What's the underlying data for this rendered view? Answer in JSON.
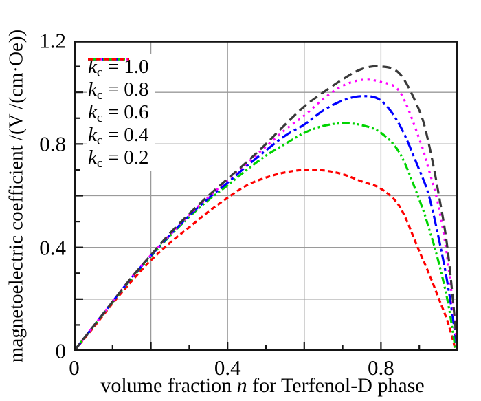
{
  "figure": {
    "background": "#ffffff",
    "axis_color": "#151515",
    "grid_color": "#9a9a9a",
    "text_color": "#000000"
  },
  "chart_data": {
    "type": "line",
    "title": "",
    "xlabel_pre": "volume fraction ",
    "xlabel_italic": "n",
    "xlabel_post": " for Terfenol-D phase",
    "ylabel": "magnetoelectric coefficient /(V /(cm·Oe))",
    "legend_position": "top-left",
    "grid": true,
    "x_axis": {
      "min": 0,
      "max": 1.0,
      "tick_labels": [
        {
          "v": 0,
          "t": "0"
        },
        {
          "v": 0.4,
          "t": "0.4"
        },
        {
          "v": 0.8,
          "t": "0.8"
        }
      ],
      "major_ticks": [
        0.2,
        0.4,
        0.6,
        0.8
      ],
      "minor_ticks": [
        0.1,
        0.3,
        0.5,
        0.7,
        0.9
      ],
      "gridlines": [
        0.2,
        0.4,
        0.6,
        0.8
      ]
    },
    "y_axis": {
      "min": 0,
      "max": 1.2,
      "tick_labels": [
        {
          "v": 0,
          "t": "0"
        },
        {
          "v": 0.4,
          "t": "0.4"
        },
        {
          "v": 0.8,
          "t": "0.8"
        },
        {
          "v": 1.2,
          "t": "1.2"
        }
      ],
      "major_ticks": [
        0.2,
        0.4,
        0.6,
        0.8,
        1.0
      ],
      "minor_ticks": [
        0.1,
        0.3,
        0.5,
        0.7,
        0.9,
        1.1
      ],
      "gridlines": [
        0.2,
        0.4,
        0.6,
        0.8,
        1.0
      ]
    },
    "series": [
      {
        "name": "kc = 0.2",
        "legend_sym": "k",
        "legend_sub": "c",
        "legend_eq": " = 0.2",
        "color": "#ff0000",
        "dash": [
          7,
          4.5
        ],
        "peak": {
          "x": 0.62,
          "y": 0.7
        },
        "points": [
          [
            0,
            0
          ],
          [
            0.05,
            0.09
          ],
          [
            0.1,
            0.183
          ],
          [
            0.15,
            0.27
          ],
          [
            0.2,
            0.35
          ],
          [
            0.25,
            0.418
          ],
          [
            0.3,
            0.478
          ],
          [
            0.35,
            0.538
          ],
          [
            0.4,
            0.592
          ],
          [
            0.45,
            0.64
          ],
          [
            0.5,
            0.67
          ],
          [
            0.55,
            0.69
          ],
          [
            0.6,
            0.7
          ],
          [
            0.65,
            0.698
          ],
          [
            0.7,
            0.683
          ],
          [
            0.75,
            0.655
          ],
          [
            0.8,
            0.627
          ],
          [
            0.85,
            0.555
          ],
          [
            0.9,
            0.385
          ],
          [
            0.925,
            0.3
          ],
          [
            0.95,
            0.205
          ],
          [
            0.975,
            0.108
          ],
          [
            0.995,
            0
          ]
        ]
      },
      {
        "name": "kc = 0.4",
        "legend_sym": "k",
        "legend_sub": "c",
        "legend_eq": " = 0.4",
        "color": "#00d400",
        "dash": [
          11,
          4,
          3,
          4,
          3,
          4
        ],
        "peak": {
          "x": 0.7,
          "y": 0.88
        },
        "points": [
          [
            0,
            0
          ],
          [
            0.05,
            0.094
          ],
          [
            0.1,
            0.188
          ],
          [
            0.15,
            0.28
          ],
          [
            0.2,
            0.365
          ],
          [
            0.25,
            0.445
          ],
          [
            0.3,
            0.518
          ],
          [
            0.35,
            0.583
          ],
          [
            0.4,
            0.64
          ],
          [
            0.45,
            0.7
          ],
          [
            0.5,
            0.755
          ],
          [
            0.55,
            0.8
          ],
          [
            0.6,
            0.843
          ],
          [
            0.65,
            0.87
          ],
          [
            0.7,
            0.88
          ],
          [
            0.75,
            0.873
          ],
          [
            0.8,
            0.843
          ],
          [
            0.85,
            0.762
          ],
          [
            0.9,
            0.585
          ],
          [
            0.925,
            0.475
          ],
          [
            0.95,
            0.345
          ],
          [
            0.975,
            0.185
          ],
          [
            0.995,
            0
          ]
        ]
      },
      {
        "name": "kc = 0.6",
        "legend_sym": "k",
        "legend_sub": "c",
        "legend_eq": " = 0.6",
        "color": "#0000ff",
        "dash": [
          15,
          5,
          4,
          5
        ],
        "peak": {
          "x": 0.75,
          "y": 0.985
        },
        "points": [
          [
            0,
            0
          ],
          [
            0.05,
            0.095
          ],
          [
            0.1,
            0.19
          ],
          [
            0.15,
            0.283
          ],
          [
            0.2,
            0.368
          ],
          [
            0.25,
            0.448
          ],
          [
            0.3,
            0.523
          ],
          [
            0.35,
            0.59
          ],
          [
            0.4,
            0.65
          ],
          [
            0.45,
            0.715
          ],
          [
            0.5,
            0.775
          ],
          [
            0.55,
            0.832
          ],
          [
            0.6,
            0.875
          ],
          [
            0.65,
            0.93
          ],
          [
            0.7,
            0.968
          ],
          [
            0.75,
            0.985
          ],
          [
            0.8,
            0.968
          ],
          [
            0.85,
            0.87
          ],
          [
            0.9,
            0.7
          ],
          [
            0.925,
            0.6
          ],
          [
            0.95,
            0.44
          ],
          [
            0.975,
            0.25
          ],
          [
            1,
            0
          ]
        ]
      },
      {
        "name": "kc = 0.8",
        "legend_sym": "k",
        "legend_sub": "c",
        "legend_eq": " = 0.8",
        "color": "#ff00ff",
        "dash": [
          3.2,
          6
        ],
        "peak": {
          "x": 0.77,
          "y": 1.05
        },
        "points": [
          [
            0,
            0
          ],
          [
            0.05,
            0.095
          ],
          [
            0.1,
            0.19
          ],
          [
            0.15,
            0.285
          ],
          [
            0.2,
            0.37
          ],
          [
            0.25,
            0.45
          ],
          [
            0.3,
            0.525
          ],
          [
            0.35,
            0.595
          ],
          [
            0.4,
            0.66
          ],
          [
            0.45,
            0.725
          ],
          [
            0.5,
            0.79
          ],
          [
            0.55,
            0.855
          ],
          [
            0.6,
            0.91
          ],
          [
            0.65,
            0.975
          ],
          [
            0.7,
            1.025
          ],
          [
            0.75,
            1.048
          ],
          [
            0.8,
            1.04
          ],
          [
            0.85,
            1.0
          ],
          [
            0.9,
            0.82
          ],
          [
            0.925,
            0.7
          ],
          [
            0.95,
            0.56
          ],
          [
            0.975,
            0.34
          ],
          [
            1,
            0
          ]
        ]
      },
      {
        "name": "kc = 1.0",
        "legend_sym": "k",
        "legend_sub": "c",
        "legend_eq": " = 1.0",
        "color": "#3a3a3a",
        "dash": [
          13,
          7
        ],
        "peak": {
          "x": 0.78,
          "y": 1.1
        },
        "points": [
          [
            0,
            0
          ],
          [
            0.05,
            0.095
          ],
          [
            0.1,
            0.19
          ],
          [
            0.15,
            0.285
          ],
          [
            0.2,
            0.37
          ],
          [
            0.25,
            0.455
          ],
          [
            0.3,
            0.53
          ],
          [
            0.35,
            0.6
          ],
          [
            0.4,
            0.665
          ],
          [
            0.45,
            0.73
          ],
          [
            0.5,
            0.8
          ],
          [
            0.55,
            0.875
          ],
          [
            0.6,
            0.945
          ],
          [
            0.65,
            1.0
          ],
          [
            0.7,
            1.05
          ],
          [
            0.75,
            1.09
          ],
          [
            0.8,
            1.1
          ],
          [
            0.85,
            1.07
          ],
          [
            0.9,
            0.93
          ],
          [
            0.925,
            0.8
          ],
          [
            0.95,
            0.61
          ],
          [
            0.975,
            0.38
          ],
          [
            1,
            0
          ]
        ]
      }
    ]
  }
}
